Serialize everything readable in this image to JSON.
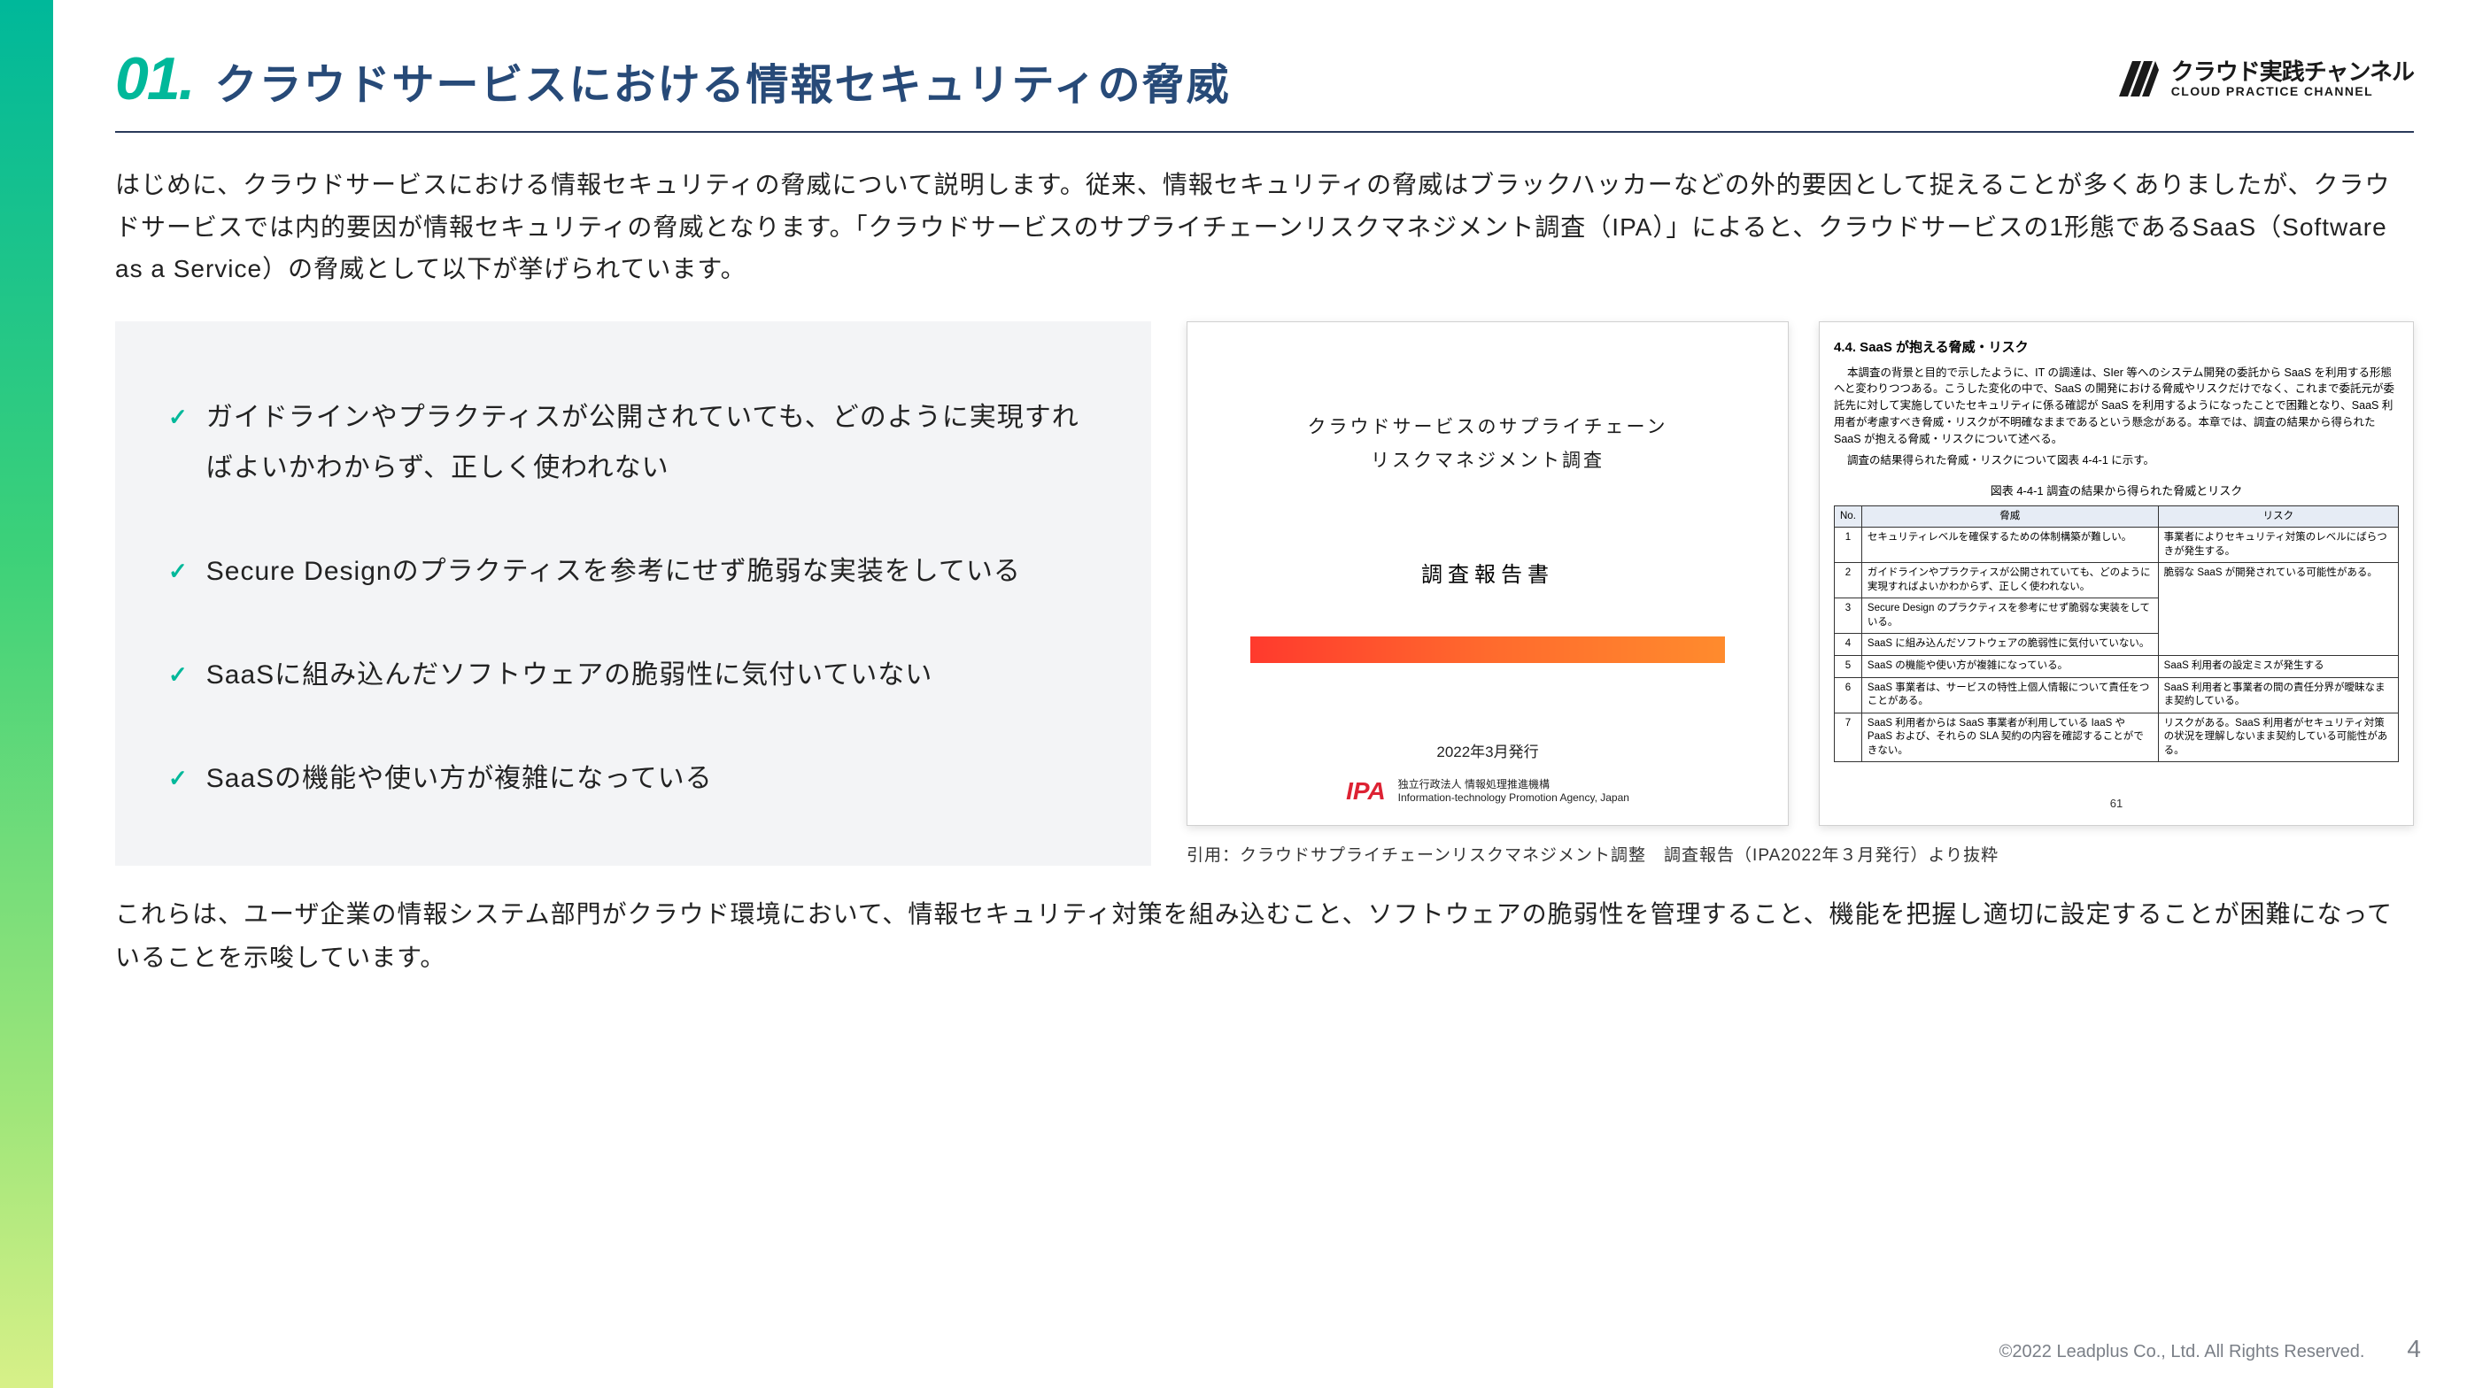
{
  "section": {
    "number": "01.",
    "title": "クラウドサービスにおける情報セキュリティの脅威"
  },
  "brand": {
    "jp": "クラウド実践チャンネル",
    "en": "CLOUD PRACTICE CHANNEL"
  },
  "intro": "はじめに、クラウドサービスにおける情報セキュリティの脅威について説明します。従来、情報セキュリティの脅威はブラックハッカーなどの外的要因として捉えることが多くありましたが、クラウドサービスでは内的要因が情報セキュリティの脅威となります。「クラウドサービスのサプライチェーンリスクマネジメント調査（IPA）」によると、クラウドサービスの1形態であるSaaS（Software as a Service）の脅威として以下が挙げられています。",
  "bullets": [
    "ガイドラインやプラクティスが公開されていても、どのように実現すればよいかわからず、正しく使われない",
    "Secure Designのプラクティスを参考にせず脆弱な実装をしている",
    "SaaSに組み込んだソフトウェアの脆弱性に気付いていない",
    "SaaSの機能や使い方が複雑になっている"
  ],
  "doc1": {
    "title_line1": "クラウドサービスのサプライチェーン",
    "title_line2": "リスクマネジメント調査",
    "subtitle": "調査報告書",
    "date": "2022年3月発行",
    "ipa": "IPA",
    "ipa_org_jp": "独立行政法人 情報処理推進機構",
    "ipa_org_en": "Information-technology Promotion Agency, Japan"
  },
  "doc2": {
    "heading": "4.4.  SaaS が抱える脅威・リスク",
    "para1": "本調査の背景と目的で示したように、IT の調達は、SIer 等へのシステム開発の委託から SaaS を利用する形態へと変わりつつある。こうした変化の中で、SaaS の開発における脅威やリスクだけでなく、これまで委託元が委託先に対して実施していたセキュリティに係る確認が SaaS を利用するようになったことで困難となり、SaaS 利用者が考慮すべき脅威・リスクが不明確なままであるという懸念がある。本章では、調査の結果から得られた SaaS が抱える脅威・リスクについて述べる。",
    "para2": "調査の結果得られた脅威・リスクについて図表 4-4-1 に示す。",
    "table_caption": "図表 4-4-1  調査の結果から得られた脅威とリスク",
    "columns": [
      "No.",
      "脅威",
      "リスク"
    ],
    "rows": [
      [
        "1",
        "セキュリティレベルを確保するための体制構築が難しい。",
        "事業者によりセキュリティ対策のレベルにばらつきが発生する。"
      ],
      [
        "2",
        "ガイドラインやプラクティスが公開されていても、どのように実現すればよいかわからず、正しく使われない。",
        "脆弱な SaaS が開発されている可能性がある。"
      ],
      [
        "3",
        "Secure Design のプラクティスを参考にせず脆弱な実装をしている。",
        ""
      ],
      [
        "4",
        "SaaS に組み込んだソフトウェアの脆弱性に気付いていない。",
        ""
      ],
      [
        "5",
        "SaaS の機能や使い方が複雑になっている。",
        "SaaS 利用者の設定ミスが発生する"
      ],
      [
        "6",
        "SaaS 事業者は、サービスの特性上個人情報について責任をつことがある。",
        "SaaS 利用者と事業者の間の責任分界が曖昧なまま契約している。"
      ],
      [
        "7",
        "SaaS 利用者からは SaaS 事業者が利用している IaaS や PaaS および、それらの SLA 契約の内容を確認することができない。",
        "リスクがある。SaaS 利用者がセキュリティ対策の状況を理解しないまま契約している可能性がある。"
      ]
    ],
    "page": "61"
  },
  "citation": "引用：クラウドサプライチェーンリスクマネジメント調整　調査報告（IPA2022年３月発行）より抜粋",
  "conclusion": "これらは、ユーザ企業の情報システム部門がクラウド環境において、情報セキュリティ対策を組み込むこと、ソフトウェアの脆弱性を管理すること、機能を把握し適切に設定することが困難になっていることを示唆しています。",
  "footer": {
    "copyright": "©2022 Leadplus Co., Ltd. All Rights Reserved.",
    "page": "4"
  },
  "colors": {
    "accent": "#00b89a",
    "title": "#274a78",
    "bg_box": "#f3f4f6",
    "doc_bar_grad": [
      "#ff3a2d",
      "#ff6a2d",
      "#ff8b2d"
    ]
  }
}
